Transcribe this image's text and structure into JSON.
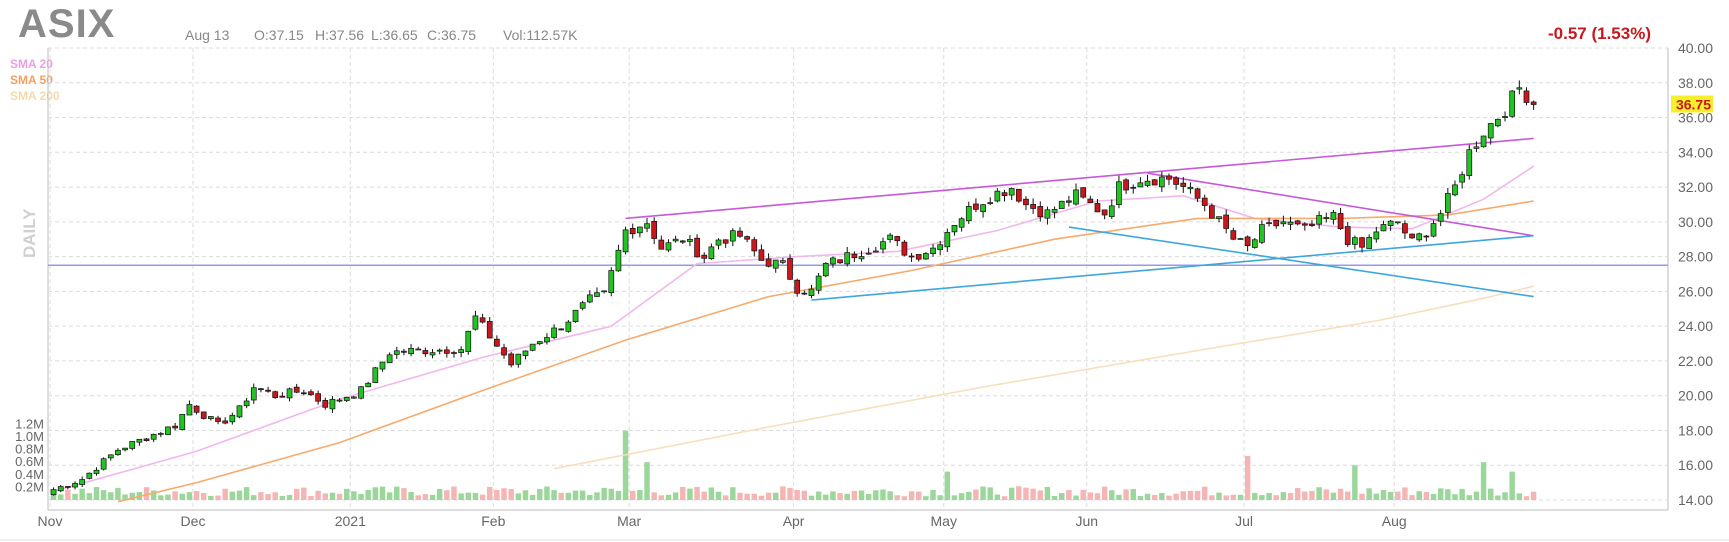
{
  "header": {
    "ticker": "ASIX",
    "date": "Aug 13",
    "open": "O:37.15",
    "high": "H:37.56",
    "low": "L:36.65",
    "close": "C:36.75",
    "volume": "Vol:112.57K",
    "change": "-0.57 (1.53%)"
  },
  "legend": [
    {
      "label": "SMA 20",
      "color": "#e9a0e2"
    },
    {
      "label": "SMA 50",
      "color": "#f5a05e"
    },
    {
      "label": "SMA 200",
      "color": "#f5d9ad"
    }
  ],
  "timeframe_label": "DAILY",
  "colors": {
    "up": "#22c322",
    "down": "#c8181e",
    "vol_up": "#9bd69b",
    "vol_down": "#f5b5b5",
    "trend_magenta": "#c659d8",
    "trend_blue": "#3ea6dd",
    "horizontal": "#9898e6",
    "last_price_bg": "#f6f02a"
  },
  "chart_data": {
    "type": "candlestick",
    "symbol": "ASIX",
    "price_axis": {
      "min": 14,
      "max": 40,
      "ticks": [
        "14.00",
        "16.00",
        "18.00",
        "20.00",
        "22.00",
        "24.00",
        "26.00",
        "28.00",
        "30.00",
        "32.00",
        "34.00",
        "36.00",
        "38.00",
        "40.00"
      ],
      "last_price_label": "36.75"
    },
    "volume_axis": {
      "max": 1.3,
      "ticks": [
        "0.2M",
        "0.4M",
        "0.6M",
        "0.8M",
        "1.0M",
        "1.2M"
      ]
    },
    "x_axis": {
      "labels": [
        {
          "label": "Nov",
          "index": 0
        },
        {
          "label": "Dec",
          "index": 20
        },
        {
          "label": "2021",
          "index": 42
        },
        {
          "label": "Feb",
          "index": 62
        },
        {
          "label": "Mar",
          "index": 81
        },
        {
          "label": "Apr",
          "index": 104
        },
        {
          "label": "May",
          "index": 125
        },
        {
          "label": "Jun",
          "index": 145
        },
        {
          "label": "Jul",
          "index": 167
        },
        {
          "label": "Aug",
          "index": 188
        }
      ],
      "total_bars": 203
    },
    "keypoints": [
      [
        0,
        14.6
      ],
      [
        4,
        15.2
      ],
      [
        9,
        16.9
      ],
      [
        13,
        17.6
      ],
      [
        17,
        18.3
      ],
      [
        19,
        19.5
      ],
      [
        23,
        18.3
      ],
      [
        26,
        19.2
      ],
      [
        28,
        20.5
      ],
      [
        31,
        20.0
      ],
      [
        35,
        20.3
      ],
      [
        38,
        19.5
      ],
      [
        43,
        20.3
      ],
      [
        47,
        22.5
      ],
      [
        51,
        22.6
      ],
      [
        57,
        22.7
      ],
      [
        59,
        24.5
      ],
      [
        64,
        21.8
      ],
      [
        67,
        23.0
      ],
      [
        71,
        24.0
      ],
      [
        75,
        25.5
      ],
      [
        77,
        25.8
      ],
      [
        80,
        29.5
      ],
      [
        83,
        30.0
      ],
      [
        85,
        28.5
      ],
      [
        88,
        29.0
      ],
      [
        91,
        28.0
      ],
      [
        93,
        29.0
      ],
      [
        96,
        29.2
      ],
      [
        99,
        27.8
      ],
      [
        102,
        27.5
      ],
      [
        104,
        26.2
      ],
      [
        106,
        26.0
      ],
      [
        108,
        27.5
      ],
      [
        111,
        28.0
      ],
      [
        114,
        28.5
      ],
      [
        117,
        29.0
      ],
      [
        120,
        28.0
      ],
      [
        123,
        28.5
      ],
      [
        126,
        30.0
      ],
      [
        129,
        31.0
      ],
      [
        131,
        31.5
      ],
      [
        134,
        32.0
      ],
      [
        136,
        31.0
      ],
      [
        139,
        30.5
      ],
      [
        141,
        31.0
      ],
      [
        143,
        31.5
      ],
      [
        147,
        30.5
      ],
      [
        149,
        32.0
      ],
      [
        152,
        32.5
      ],
      [
        156,
        32.5
      ],
      [
        158,
        32.0
      ],
      [
        161,
        31.0
      ],
      [
        165,
        29.0
      ],
      [
        167,
        28.5
      ],
      [
        169,
        29.5
      ],
      [
        172,
        30.0
      ],
      [
        175,
        29.5
      ],
      [
        177,
        30.0
      ],
      [
        179,
        30.3
      ],
      [
        181,
        29.0
      ],
      [
        183,
        28.5
      ],
      [
        185,
        29.5
      ],
      [
        188,
        30.0
      ],
      [
        190,
        28.8
      ],
      [
        192,
        29.5
      ],
      [
        194,
        30.5
      ],
      [
        196,
        32.0
      ],
      [
        198,
        34.0
      ],
      [
        200,
        35.2
      ],
      [
        203,
        36.5
      ],
      [
        205,
        37.7
      ],
      [
        206,
        37.3
      ],
      [
        207,
        36.75
      ]
    ],
    "moving_averages": [
      {
        "name": "SMA 20",
        "points": [
          [
            0,
            14.5
          ],
          [
            20,
            16.8
          ],
          [
            40,
            19.8
          ],
          [
            60,
            22.2
          ],
          [
            78,
            24.0
          ],
          [
            90,
            27.6
          ],
          [
            104,
            28.0
          ],
          [
            118,
            28.3
          ],
          [
            132,
            29.5
          ],
          [
            146,
            31.2
          ],
          [
            158,
            31.5
          ],
          [
            168,
            30.2
          ],
          [
            180,
            29.7
          ],
          [
            190,
            29.6
          ],
          [
            200,
            31.3
          ],
          [
            207,
            33.2
          ]
        ]
      },
      {
        "name": "SMA 50",
        "points": [
          [
            9,
            13.9
          ],
          [
            20,
            15.0
          ],
          [
            40,
            17.3
          ],
          [
            60,
            20.3
          ],
          [
            80,
            23.2
          ],
          [
            100,
            25.7
          ],
          [
            120,
            27.2
          ],
          [
            140,
            29.0
          ],
          [
            160,
            30.2
          ],
          [
            180,
            30.2
          ],
          [
            195,
            30.4
          ],
          [
            207,
            31.2
          ]
        ]
      },
      {
        "name": "SMA 200",
        "points": [
          [
            70,
            15.8
          ],
          [
            100,
            18.2
          ],
          [
            130,
            20.5
          ],
          [
            160,
            22.6
          ],
          [
            185,
            24.3
          ],
          [
            200,
            25.6
          ],
          [
            207,
            26.3
          ]
        ]
      }
    ],
    "trendlines": [
      {
        "kind": "magenta",
        "from": [
          80,
          30.2
        ],
        "to": [
          207,
          34.8
        ]
      },
      {
        "kind": "magenta",
        "from": [
          153,
          32.8
        ],
        "to": [
          207,
          29.2
        ]
      },
      {
        "kind": "blue",
        "from": [
          106,
          25.5
        ],
        "to": [
          207,
          29.2
        ]
      },
      {
        "kind": "blue",
        "from": [
          142,
          29.7
        ],
        "to": [
          207,
          25.7
        ]
      },
      {
        "kind": "horizontal",
        "from": [
          -3,
          27.5
        ],
        "to": [
          207,
          27.5
        ]
      }
    ],
    "volume_spikes": [
      [
        80,
        1.1
      ],
      [
        83,
        0.6
      ],
      [
        125,
        0.45
      ],
      [
        167,
        0.7
      ],
      [
        182,
        0.55
      ],
      [
        200,
        0.6
      ],
      [
        204,
        0.45
      ]
    ]
  }
}
